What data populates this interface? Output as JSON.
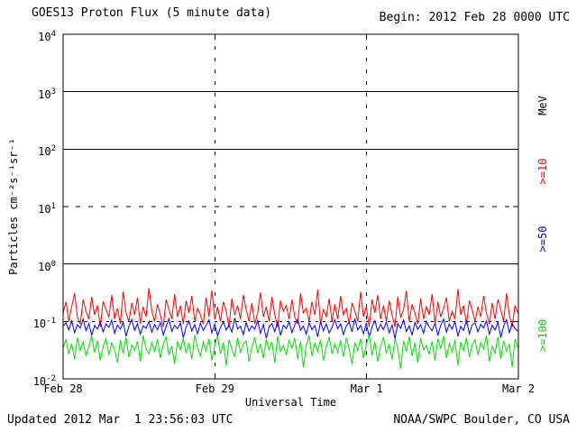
{
  "title": "GOES13 Proton Flux (5 minute data)",
  "begin_label": "Begin: 2012 Feb 28 0000 UTC",
  "updated_label": "Updated 2012 Mar  1 23:56:03 UTC",
  "source_label": "NOAA/SWPC Boulder, CO USA",
  "colors": {
    "background": "#ffffff",
    "axis": "#000000",
    "red": "#ff0000",
    "blue": "#0000ff",
    "green": "#00e000"
  },
  "chart_data": {
    "type": "line",
    "title": "GOES13 Proton Flux (5 minute data)",
    "xlabel": "Universal Time",
    "ylabel": "Particles cm^-2 s^-1 sr^-1",
    "ylabel_display": "Particles cm⁻²s⁻¹sr⁻¹",
    "y_scale": "log",
    "ylim": [
      0.01,
      10000
    ],
    "y_max_exp": 4,
    "y_min_exp": -2,
    "y_tick_base": "10",
    "y_tick_exponents": [
      4,
      3,
      2,
      1,
      0,
      -1,
      -2
    ],
    "x_tick_labels": [
      "Feb 28",
      "Feb 29",
      "Mar 1",
      "Mar 2"
    ],
    "x_end_fraction": 0.999,
    "solid_hline_exponents": [
      3,
      2,
      0
    ],
    "dashed_hlines": [
      {
        "exponent": 1,
        "dash": "5 9"
      },
      {
        "exponent": -1,
        "dash": "3 5"
      }
    ],
    "dashed_vlines": {
      "fractions": [
        0.33333,
        0.66667
      ],
      "dash": "4 9"
    },
    "unit_label": "MeV",
    "grid": true,
    "legend_position": "right-vertical",
    "series": [
      {
        "id": "ge10",
        "name": ">=10 MeV",
        "legend": ">=10",
        "color": "#ff0000",
        "values": [
          0.14,
          0.22,
          0.1,
          0.18,
          0.31,
          0.12,
          0.09,
          0.24,
          0.15,
          0.11,
          0.27,
          0.13,
          0.19,
          0.08,
          0.22,
          0.16,
          0.12,
          0.29,
          0.11,
          0.17,
          0.09,
          0.33,
          0.14,
          0.1,
          0.21,
          0.13,
          0.26,
          0.09,
          0.18,
          0.12,
          0.38,
          0.15,
          0.1,
          0.2,
          0.13,
          0.08,
          0.24,
          0.16,
          0.11,
          0.3,
          0.12,
          0.19,
          0.09,
          0.23,
          0.14,
          0.28,
          0.1,
          0.17,
          0.13,
          0.09,
          0.26,
          0.12,
          0.35,
          0.11,
          0.18,
          0.1,
          0.22,
          0.15,
          0.08,
          0.25,
          0.13,
          0.19,
          0.11,
          0.29,
          0.16,
          0.1,
          0.21,
          0.09,
          0.14,
          0.32,
          0.12,
          0.18,
          0.1,
          0.27,
          0.13,
          0.08,
          0.23,
          0.15,
          0.19,
          0.11,
          0.24,
          0.12,
          0.09,
          0.31,
          0.14,
          0.17,
          0.1,
          0.22,
          0.13,
          0.36,
          0.09,
          0.16,
          0.12,
          0.25,
          0.1,
          0.2,
          0.11,
          0.28,
          0.13,
          0.17,
          0.09,
          0.21,
          0.15,
          0.1,
          0.33,
          0.12,
          0.18,
          0.08,
          0.24,
          0.14,
          0.29,
          0.11,
          0.19,
          0.1,
          0.23,
          0.13,
          0.08,
          0.27,
          0.12,
          0.16,
          0.34,
          0.1,
          0.2,
          0.14,
          0.09,
          0.25,
          0.11,
          0.18,
          0.13,
          0.3,
          0.09,
          0.22,
          0.12,
          0.17,
          0.26,
          0.1,
          0.15,
          0.11,
          0.37,
          0.13,
          0.19,
          0.09,
          0.23,
          0.16,
          0.1,
          0.18,
          0.12,
          0.28,
          0.14,
          0.09,
          0.21,
          0.11,
          0.24,
          0.16,
          0.1,
          0.31,
          0.13,
          0.08,
          0.19,
          0.14
        ]
      },
      {
        "id": "ge50",
        "name": ">=50 MeV",
        "legend": ">=50",
        "color": "#0000ff",
        "values": [
          0.083,
          0.095,
          0.071,
          0.102,
          0.064,
          0.088,
          0.077,
          0.11,
          0.069,
          0.092,
          0.058,
          0.085,
          0.074,
          0.098,
          0.066,
          0.09,
          0.079,
          0.105,
          0.062,
          0.087,
          0.073,
          0.096,
          0.055,
          0.082,
          0.108,
          0.07,
          0.091,
          0.06,
          0.084,
          0.076,
          0.1,
          0.065,
          0.089,
          0.072,
          0.097,
          0.058,
          0.081,
          0.112,
          0.067,
          0.086,
          0.075,
          0.094,
          0.052,
          0.08,
          0.102,
          0.068,
          0.088,
          0.061,
          0.093,
          0.07,
          0.085,
          0.107,
          0.063,
          0.09,
          0.056,
          0.078,
          0.099,
          0.071,
          0.087,
          0.065,
          0.115,
          0.074,
          0.082,
          0.059,
          0.096,
          0.068,
          0.084,
          0.073,
          0.104,
          0.062,
          0.089,
          0.051,
          0.08,
          0.092,
          0.066,
          0.1,
          0.057,
          0.086,
          0.075,
          0.098,
          0.064,
          0.088,
          0.109,
          0.07,
          0.083,
          0.06,
          0.095,
          0.072,
          0.085,
          0.054,
          0.101,
          0.069,
          0.09,
          0.063,
          0.079,
          0.107,
          0.075,
          0.091,
          0.059,
          0.083,
          0.097,
          0.066,
          0.112,
          0.071,
          0.086,
          0.061,
          0.094,
          0.053,
          0.081,
          0.103,
          0.068,
          0.089,
          0.072,
          0.098,
          0.063,
          0.087,
          0.05,
          0.092,
          0.076,
          0.106,
          0.067,
          0.084,
          0.058,
          0.096,
          0.073,
          0.088,
          0.062,
          0.1,
          0.08,
          0.069,
          0.093,
          0.057,
          0.085,
          0.11,
          0.065,
          0.09,
          0.074,
          0.099,
          0.055,
          0.082,
          0.07,
          0.104,
          0.061,
          0.087,
          0.094,
          0.066,
          0.089,
          0.077,
          0.102,
          0.06,
          0.086,
          0.071,
          0.097,
          0.052,
          0.083,
          0.108,
          0.064,
          0.091,
          0.075,
          0.068
        ]
      },
      {
        "id": "ge100",
        "name": ">=100 MeV",
        "legend": ">=100",
        "color": "#00e000",
        "values": [
          0.035,
          0.048,
          0.027,
          0.041,
          0.022,
          0.052,
          0.031,
          0.044,
          0.025,
          0.038,
          0.055,
          0.029,
          0.046,
          0.021,
          0.036,
          0.05,
          0.026,
          0.042,
          0.033,
          0.019,
          0.047,
          0.028,
          0.053,
          0.024,
          0.039,
          0.031,
          0.045,
          0.02,
          0.057,
          0.034,
          0.027,
          0.043,
          0.03,
          0.049,
          0.023,
          0.04,
          0.054,
          0.026,
          0.037,
          0.018,
          0.045,
          0.032,
          0.051,
          0.028,
          0.042,
          0.022,
          0.058,
          0.035,
          0.025,
          0.044,
          0.031,
          0.05,
          0.021,
          0.038,
          0.056,
          0.027,
          0.043,
          0.017,
          0.048,
          0.033,
          0.024,
          0.052,
          0.029,
          0.04,
          0.046,
          0.02,
          0.036,
          0.053,
          0.028,
          0.041,
          0.023,
          0.049,
          0.032,
          0.044,
          0.019,
          0.055,
          0.03,
          0.038,
          0.026,
          0.047,
          0.034,
          0.051,
          0.022,
          0.045,
          0.016,
          0.039,
          0.057,
          0.025,
          0.042,
          0.03,
          0.048,
          0.021,
          0.036,
          0.054,
          0.027,
          0.041,
          0.029,
          0.047,
          0.024,
          0.052,
          0.033,
          0.018,
          0.043,
          0.031,
          0.05,
          0.023,
          0.039,
          0.058,
          0.026,
          0.044,
          0.02,
          0.037,
          0.053,
          0.028,
          0.04,
          0.022,
          0.049,
          0.035,
          0.015,
          0.046,
          0.03,
          0.055,
          0.025,
          0.042,
          0.019,
          0.051,
          0.032,
          0.038,
          0.027,
          0.045,
          0.021,
          0.05,
          0.034,
          0.056,
          0.023,
          0.041,
          0.029,
          0.047,
          0.017,
          0.044,
          0.031,
          0.052,
          0.024,
          0.039,
          0.048,
          0.026,
          0.043,
          0.033,
          0.057,
          0.02,
          0.037,
          0.028,
          0.054,
          0.022,
          0.046,
          0.03,
          0.04,
          0.016,
          0.049,
          0.035
        ]
      }
    ]
  }
}
